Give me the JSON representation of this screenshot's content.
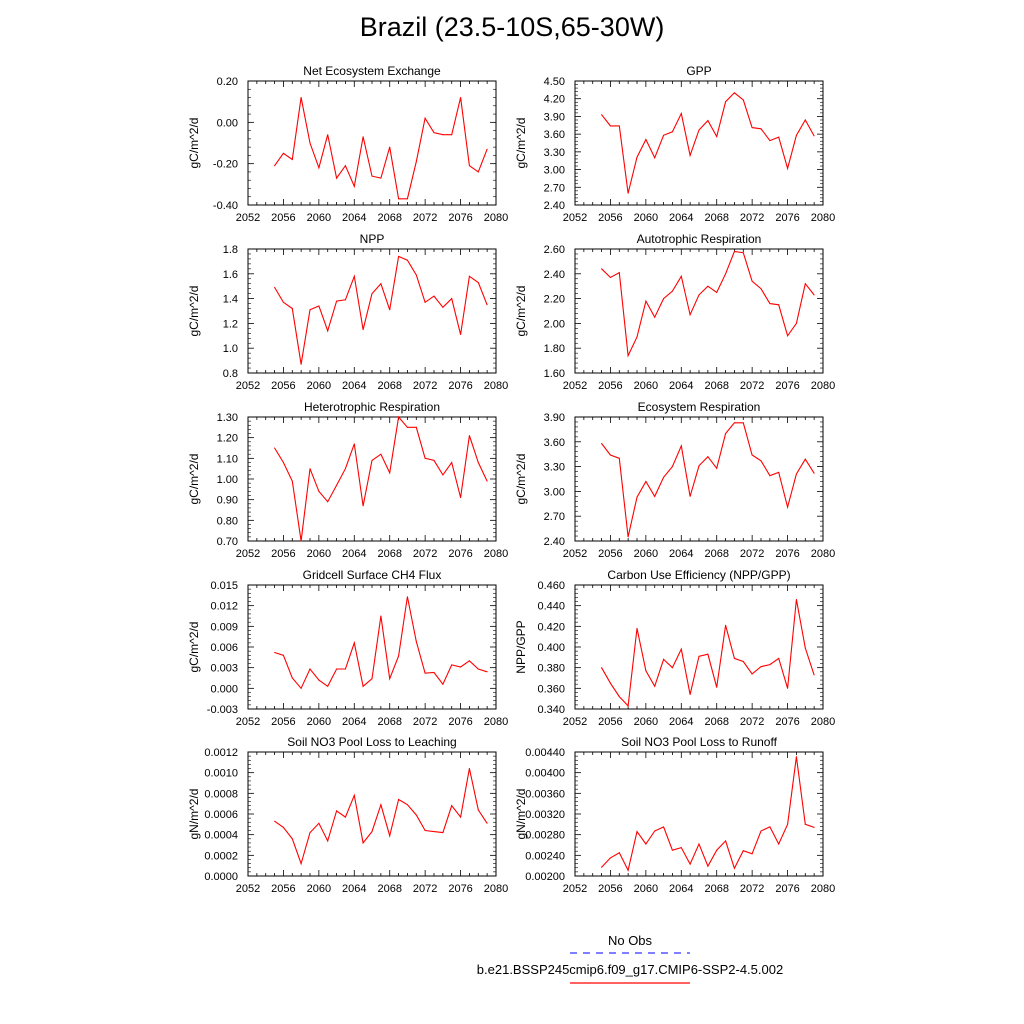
{
  "page": {
    "title": "Brazil (23.5-10S,65-30W)"
  },
  "legend": {
    "entries": [
      {
        "label": "No Obs",
        "color": "#3333ff",
        "style": "dashed"
      },
      {
        "label": "b.e21.BSSP245cmip6.f09_g17.CMIP6-SSP2-4.5.002",
        "color": "#ff0000",
        "style": "solid"
      }
    ]
  },
  "chart_data": [
    {
      "type": "line",
      "title": "Net Ecosystem Exchange",
      "xlabel": "",
      "ylabel": "gC/m^2/d",
      "xlim": [
        2052,
        2080
      ],
      "xticks": [
        2052,
        2056,
        2060,
        2064,
        2068,
        2072,
        2076,
        2080
      ],
      "xticklabels": [
        "2052",
        "2056",
        "2060",
        "2064",
        "2068",
        "2072",
        "2076",
        "2080"
      ],
      "ylim": [
        -0.4,
        0.2
      ],
      "yticks": [
        -0.4,
        -0.2,
        0.0,
        0.2
      ],
      "yticklabels": [
        "-0.40",
        "-0.20",
        "0.00",
        "0.20"
      ],
      "x": [
        2055,
        2056,
        2057,
        2058,
        2059,
        2060,
        2061,
        2062,
        2063,
        2064,
        2065,
        2066,
        2067,
        2068,
        2069,
        2070,
        2071,
        2072,
        2073,
        2074,
        2075,
        2076,
        2077,
        2078,
        2079
      ],
      "series": [
        {
          "name": "b.e21.BSSP245cmip6.f09_g17.CMIP6-SSP2-4.5.002",
          "color": "#ff0000",
          "values": [
            -0.21,
            -0.15,
            -0.18,
            0.12,
            -0.1,
            -0.22,
            -0.06,
            -0.27,
            -0.21,
            -0.31,
            -0.07,
            -0.26,
            -0.27,
            -0.12,
            -0.37,
            -0.37,
            -0.19,
            0.02,
            -0.05,
            -0.06,
            -0.06,
            0.12,
            -0.21,
            -0.24,
            -0.13
          ]
        }
      ]
    },
    {
      "type": "line",
      "title": "GPP",
      "xlabel": "",
      "ylabel": "gC/m^2/d",
      "xlim": [
        2052,
        2080
      ],
      "xticks": [
        2052,
        2056,
        2060,
        2064,
        2068,
        2072,
        2076,
        2080
      ],
      "xticklabels": [
        "2052",
        "2056",
        "2060",
        "2064",
        "2068",
        "2072",
        "2076",
        "2080"
      ],
      "ylim": [
        2.4,
        4.5
      ],
      "yticks": [
        2.4,
        2.7,
        3.0,
        3.3,
        3.6,
        3.9,
        4.2,
        4.5
      ],
      "yticklabels": [
        "2.40",
        "2.70",
        "3.00",
        "3.30",
        "3.60",
        "3.90",
        "4.20",
        "4.50"
      ],
      "x": [
        2055,
        2056,
        2057,
        2058,
        2059,
        2060,
        2061,
        2062,
        2063,
        2064,
        2065,
        2066,
        2067,
        2068,
        2069,
        2070,
        2071,
        2072,
        2073,
        2074,
        2075,
        2076,
        2077,
        2078,
        2079
      ],
      "series": [
        {
          "name": "b.e21.BSSP245cmip6.f09_g17.CMIP6-SSP2-4.5.002",
          "color": "#ff0000",
          "values": [
            3.93,
            3.74,
            3.74,
            2.6,
            3.21,
            3.51,
            3.2,
            3.58,
            3.64,
            3.95,
            3.24,
            3.67,
            3.83,
            3.56,
            4.15,
            4.3,
            4.18,
            3.71,
            3.69,
            3.49,
            3.55,
            3.02,
            3.58,
            3.84,
            3.57
          ]
        }
      ]
    },
    {
      "type": "line",
      "title": "NPP",
      "xlabel": "",
      "ylabel": "gC/m^2/d",
      "xlim": [
        2052,
        2080
      ],
      "xticks": [
        2052,
        2056,
        2060,
        2064,
        2068,
        2072,
        2076,
        2080
      ],
      "xticklabels": [
        "2052",
        "2056",
        "2060",
        "2064",
        "2068",
        "2072",
        "2076",
        "2080"
      ],
      "ylim": [
        0.8,
        1.8
      ],
      "yticks": [
        0.8,
        1.0,
        1.2,
        1.4,
        1.6,
        1.8
      ],
      "yticklabels": [
        "0.8",
        "1.0",
        "1.2",
        "1.4",
        "1.6",
        "1.8"
      ],
      "x": [
        2055,
        2056,
        2057,
        2058,
        2059,
        2060,
        2061,
        2062,
        2063,
        2064,
        2065,
        2066,
        2067,
        2068,
        2069,
        2070,
        2071,
        2072,
        2073,
        2074,
        2075,
        2076,
        2077,
        2078,
        2079
      ],
      "series": [
        {
          "name": "b.e21.BSSP245cmip6.f09_g17.CMIP6-SSP2-4.5.002",
          "color": "#ff0000",
          "values": [
            1.49,
            1.37,
            1.32,
            0.87,
            1.31,
            1.34,
            1.14,
            1.38,
            1.39,
            1.58,
            1.15,
            1.44,
            1.52,
            1.31,
            1.74,
            1.71,
            1.59,
            1.37,
            1.42,
            1.33,
            1.4,
            1.11,
            1.58,
            1.53,
            1.35
          ]
        }
      ]
    },
    {
      "type": "line",
      "title": "Autotrophic Respiration",
      "xlabel": "",
      "ylabel": "gC/m^2/d",
      "xlim": [
        2052,
        2080
      ],
      "xticks": [
        2052,
        2056,
        2060,
        2064,
        2068,
        2072,
        2076,
        2080
      ],
      "xticklabels": [
        "2052",
        "2056",
        "2060",
        "2064",
        "2068",
        "2072",
        "2076",
        "2080"
      ],
      "ylim": [
        1.6,
        2.6
      ],
      "yticks": [
        1.6,
        1.8,
        2.0,
        2.2,
        2.4,
        2.6
      ],
      "yticklabels": [
        "1.60",
        "1.80",
        "2.00",
        "2.20",
        "2.40",
        "2.60"
      ],
      "x": [
        2055,
        2056,
        2057,
        2058,
        2059,
        2060,
        2061,
        2062,
        2063,
        2064,
        2065,
        2066,
        2067,
        2068,
        2069,
        2070,
        2071,
        2072,
        2073,
        2074,
        2075,
        2076,
        2077,
        2078,
        2079
      ],
      "series": [
        {
          "name": "b.e21.BSSP245cmip6.f09_g17.CMIP6-SSP2-4.5.002",
          "color": "#ff0000",
          "values": [
            2.44,
            2.37,
            2.41,
            1.74,
            1.89,
            2.18,
            2.05,
            2.2,
            2.26,
            2.38,
            2.07,
            2.23,
            2.3,
            2.25,
            2.4,
            2.58,
            2.57,
            2.34,
            2.28,
            2.16,
            2.15,
            1.9,
            2.0,
            2.32,
            2.23
          ]
        }
      ]
    },
    {
      "type": "line",
      "title": "Heterotrophic Respiration",
      "xlabel": "",
      "ylabel": "gC/m^2/d",
      "xlim": [
        2052,
        2080
      ],
      "xticks": [
        2052,
        2056,
        2060,
        2064,
        2068,
        2072,
        2076,
        2080
      ],
      "xticklabels": [
        "2052",
        "2056",
        "2060",
        "2064",
        "2068",
        "2072",
        "2076",
        "2080"
      ],
      "ylim": [
        0.7,
        1.3
      ],
      "yticks": [
        0.7,
        0.8,
        0.9,
        1.0,
        1.1,
        1.2,
        1.3
      ],
      "yticklabels": [
        "0.70",
        "0.80",
        "0.90",
        "1.00",
        "1.10",
        "1.20",
        "1.30"
      ],
      "x": [
        2055,
        2056,
        2057,
        2058,
        2059,
        2060,
        2061,
        2062,
        2063,
        2064,
        2065,
        2066,
        2067,
        2068,
        2069,
        2070,
        2071,
        2072,
        2073,
        2074,
        2075,
        2076,
        2077,
        2078,
        2079
      ],
      "series": [
        {
          "name": "b.e21.BSSP245cmip6.f09_g17.CMIP6-SSP2-4.5.002",
          "color": "#ff0000",
          "values": [
            1.15,
            1.08,
            0.99,
            0.7,
            1.05,
            0.94,
            0.89,
            0.97,
            1.05,
            1.17,
            0.87,
            1.09,
            1.12,
            1.03,
            1.3,
            1.25,
            1.25,
            1.1,
            1.09,
            1.02,
            1.08,
            0.91,
            1.21,
            1.08,
            0.99
          ]
        }
      ]
    },
    {
      "type": "line",
      "title": "Ecosystem Respiration",
      "xlabel": "",
      "ylabel": "gC/m^2/d",
      "xlim": [
        2052,
        2080
      ],
      "xticks": [
        2052,
        2056,
        2060,
        2064,
        2068,
        2072,
        2076,
        2080
      ],
      "xticklabels": [
        "2052",
        "2056",
        "2060",
        "2064",
        "2068",
        "2072",
        "2076",
        "2080"
      ],
      "ylim": [
        2.4,
        3.9
      ],
      "yticks": [
        2.4,
        2.7,
        3.0,
        3.3,
        3.6,
        3.9
      ],
      "yticklabels": [
        "2.40",
        "2.70",
        "3.00",
        "3.30",
        "3.60",
        "3.90"
      ],
      "x": [
        2055,
        2056,
        2057,
        2058,
        2059,
        2060,
        2061,
        2062,
        2063,
        2064,
        2065,
        2066,
        2067,
        2068,
        2069,
        2070,
        2071,
        2072,
        2073,
        2074,
        2075,
        2076,
        2077,
        2078,
        2079
      ],
      "series": [
        {
          "name": "b.e21.BSSP245cmip6.f09_g17.CMIP6-SSP2-4.5.002",
          "color": "#ff0000",
          "values": [
            3.58,
            3.44,
            3.4,
            2.45,
            2.93,
            3.12,
            2.94,
            3.17,
            3.3,
            3.55,
            2.94,
            3.31,
            3.42,
            3.28,
            3.7,
            3.83,
            3.83,
            3.44,
            3.37,
            3.19,
            3.23,
            2.81,
            3.21,
            3.39,
            3.22
          ]
        }
      ]
    },
    {
      "type": "line",
      "title": "Gridcell Surface CH4 Flux",
      "xlabel": "",
      "ylabel": "gC/m^2/d",
      "xlim": [
        2052,
        2080
      ],
      "xticks": [
        2052,
        2056,
        2060,
        2064,
        2068,
        2072,
        2076,
        2080
      ],
      "xticklabels": [
        "2052",
        "2056",
        "2060",
        "2064",
        "2068",
        "2072",
        "2076",
        "2080"
      ],
      "ylim": [
        -0.003,
        0.015
      ],
      "yticks": [
        -0.003,
        0.0,
        0.003,
        0.006,
        0.009,
        0.012,
        0.015
      ],
      "yticklabels": [
        "-0.003",
        "0.000",
        "0.003",
        "0.006",
        "0.009",
        "0.012",
        "0.015"
      ],
      "x": [
        2055,
        2056,
        2057,
        2058,
        2059,
        2060,
        2061,
        2062,
        2063,
        2064,
        2065,
        2066,
        2067,
        2068,
        2069,
        2070,
        2071,
        2072,
        2073,
        2074,
        2075,
        2076,
        2077,
        2078,
        2079
      ],
      "series": [
        {
          "name": "b.e21.BSSP245cmip6.f09_g17.CMIP6-SSP2-4.5.002",
          "color": "#ff0000",
          "values": [
            0.0052,
            0.0048,
            0.0015,
            0.0,
            0.0028,
            0.0012,
            0.0003,
            0.0028,
            0.0028,
            0.0066,
            0.0003,
            0.0014,
            0.0105,
            0.0014,
            0.0047,
            0.0133,
            0.0068,
            0.0022,
            0.0023,
            0.0006,
            0.0034,
            0.0031,
            0.004,
            0.0028,
            0.0024
          ]
        }
      ]
    },
    {
      "type": "line",
      "title": "Carbon Use Efficiency (NPP/GPP)",
      "xlabel": "",
      "ylabel": "NPP/GPP",
      "xlim": [
        2052,
        2080
      ],
      "xticks": [
        2052,
        2056,
        2060,
        2064,
        2068,
        2072,
        2076,
        2080
      ],
      "xticklabels": [
        "2052",
        "2056",
        "2060",
        "2064",
        "2068",
        "2072",
        "2076",
        "2080"
      ],
      "ylim": [
        0.34,
        0.46
      ],
      "yticks": [
        0.34,
        0.36,
        0.38,
        0.4,
        0.42,
        0.44,
        0.46
      ],
      "yticklabels": [
        "0.340",
        "0.360",
        "0.380",
        "0.400",
        "0.420",
        "0.440",
        "0.460"
      ],
      "x": [
        2055,
        2056,
        2057,
        2058,
        2059,
        2060,
        2061,
        2062,
        2063,
        2064,
        2065,
        2066,
        2067,
        2068,
        2069,
        2070,
        2071,
        2072,
        2073,
        2074,
        2075,
        2076,
        2077,
        2078,
        2079
      ],
      "series": [
        {
          "name": "b.e21.BSSP245cmip6.f09_g17.CMIP6-SSP2-4.5.002",
          "color": "#ff0000",
          "values": [
            0.38,
            0.365,
            0.352,
            0.343,
            0.418,
            0.377,
            0.362,
            0.388,
            0.38,
            0.398,
            0.354,
            0.391,
            0.393,
            0.361,
            0.421,
            0.389,
            0.386,
            0.374,
            0.381,
            0.383,
            0.389,
            0.36,
            0.446,
            0.399,
            0.373
          ]
        }
      ]
    },
    {
      "type": "line",
      "title": "Soil NO3 Pool Loss to Leaching",
      "xlabel": "",
      "ylabel": "gN/m^2/d",
      "xlim": [
        2052,
        2080
      ],
      "xticks": [
        2052,
        2056,
        2060,
        2064,
        2068,
        2072,
        2076,
        2080
      ],
      "xticklabels": [
        "2052",
        "2056",
        "2060",
        "2064",
        "2068",
        "2072",
        "2076",
        "2080"
      ],
      "ylim": [
        0.0,
        0.0012
      ],
      "yticks": [
        0.0,
        0.0002,
        0.0004,
        0.0006,
        0.0008,
        0.001,
        0.0012
      ],
      "yticklabels": [
        "0.0000",
        "0.0002",
        "0.0004",
        "0.0006",
        "0.0008",
        "0.0010",
        "0.0012"
      ],
      "x": [
        2055,
        2056,
        2057,
        2058,
        2059,
        2060,
        2061,
        2062,
        2063,
        2064,
        2065,
        2066,
        2067,
        2068,
        2069,
        2070,
        2071,
        2072,
        2073,
        2074,
        2075,
        2076,
        2077,
        2078,
        2079
      ],
      "series": [
        {
          "name": "b.e21.BSSP245cmip6.f09_g17.CMIP6-SSP2-4.5.002",
          "color": "#ff0000",
          "values": [
            0.00053,
            0.00047,
            0.00036,
            0.00012,
            0.00042,
            0.00051,
            0.00034,
            0.00063,
            0.00057,
            0.00078,
            0.00032,
            0.00043,
            0.00069,
            0.00039,
            0.00074,
            0.00069,
            0.00059,
            0.00044,
            0.00043,
            0.00042,
            0.00068,
            0.00057,
            0.00104,
            0.00064,
            0.00051
          ]
        }
      ]
    },
    {
      "type": "line",
      "title": "Soil NO3 Pool Loss to Runoff",
      "xlabel": "",
      "ylabel": "gN/m^2/d",
      "xlim": [
        2052,
        2080
      ],
      "xticks": [
        2052,
        2056,
        2060,
        2064,
        2068,
        2072,
        2076,
        2080
      ],
      "xticklabels": [
        "2052",
        "2056",
        "2060",
        "2064",
        "2068",
        "2072",
        "2076",
        "2080"
      ],
      "ylim": [
        0.002,
        0.0044
      ],
      "yticks": [
        0.002,
        0.0024,
        0.0028,
        0.0032,
        0.0036,
        0.004,
        0.0044
      ],
      "yticklabels": [
        "0.00200",
        "0.00240",
        "0.00280",
        "0.00320",
        "0.00360",
        "0.00400",
        "0.00440"
      ],
      "x": [
        2055,
        2056,
        2057,
        2058,
        2059,
        2060,
        2061,
        2062,
        2063,
        2064,
        2065,
        2066,
        2067,
        2068,
        2069,
        2070,
        2071,
        2072,
        2073,
        2074,
        2075,
        2076,
        2077,
        2078,
        2079
      ],
      "series": [
        {
          "name": "b.e21.BSSP245cmip6.f09_g17.CMIP6-SSP2-4.5.002",
          "color": "#ff0000",
          "values": [
            0.00217,
            0.00235,
            0.00245,
            0.00211,
            0.00286,
            0.00262,
            0.00287,
            0.00295,
            0.0025,
            0.00255,
            0.00223,
            0.00262,
            0.00219,
            0.0025,
            0.00268,
            0.00215,
            0.00249,
            0.00243,
            0.00287,
            0.00295,
            0.00262,
            0.003,
            0.00431,
            0.003,
            0.00294
          ]
        }
      ]
    }
  ]
}
